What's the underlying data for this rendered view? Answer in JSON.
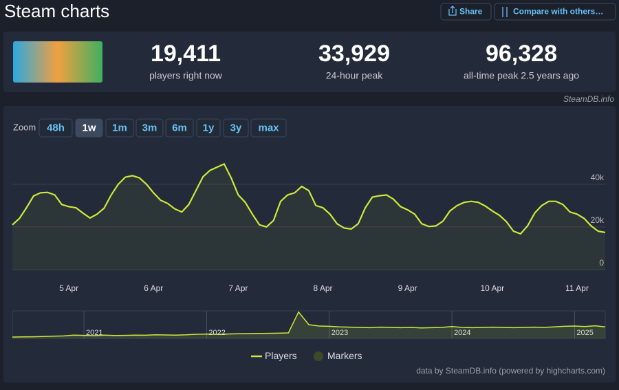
{
  "header": {
    "title": "Steam charts",
    "buttons": [
      "Share",
      "Compare with others…"
    ]
  },
  "stats": [
    {
      "value": "19,411",
      "label": "players right now"
    },
    {
      "value": "33,929",
      "label": "24-hour peak"
    },
    {
      "value": "96,328",
      "label": "all-time peak 2.5 years ago"
    }
  ],
  "source_note": "SteamDB.info",
  "zoom": {
    "label": "Zoom",
    "buttons": [
      "48h",
      "1w",
      "1m",
      "3m",
      "6m",
      "1y",
      "3y",
      "max"
    ],
    "active": "1w"
  },
  "credit": "data by SteamDB.info (powered by highcharts.com)",
  "chart_data": [
    {
      "type": "line",
      "categories": [
        null,
        null,
        null,
        null,
        null,
        null,
        null,
        null,
        "5 Apr",
        null,
        null,
        null,
        null,
        null,
        null,
        null,
        null,
        null,
        null,
        null,
        "6 Apr",
        null,
        null,
        null,
        null,
        null,
        null,
        null,
        null,
        null,
        null,
        null,
        "7 Apr",
        null,
        null,
        null,
        null,
        null,
        null,
        null,
        null,
        null,
        null,
        null,
        "8 Apr",
        null,
        null,
        null,
        null,
        null,
        null,
        null,
        null,
        null,
        null,
        null,
        "9 Apr",
        null,
        null,
        null,
        null,
        null,
        null,
        null,
        null,
        null,
        null,
        null,
        "10 Apr",
        null,
        null,
        null,
        null,
        null,
        null,
        null,
        null,
        null,
        null,
        null,
        "11 Apr",
        null,
        null,
        null,
        null
      ],
      "series": [
        {
          "name": "Players",
          "color": "#c8ec3a",
          "values": [
            21000,
            24000,
            29000,
            34500,
            36000,
            36200,
            35000,
            30500,
            29500,
            29000,
            26500,
            24200,
            26000,
            28800,
            35000,
            40000,
            43300,
            44000,
            43000,
            40000,
            36000,
            32500,
            31000,
            28500,
            27000,
            30500,
            37000,
            43500,
            46500,
            48000,
            49500,
            43000,
            35000,
            31500,
            26000,
            21000,
            20000,
            23000,
            32000,
            35000,
            36000,
            39000,
            37000,
            30000,
            29000,
            26000,
            21500,
            19500,
            19000,
            21500,
            29000,
            34000,
            34600,
            35000,
            33000,
            29500,
            28000,
            26000,
            21500,
            20200,
            20500,
            22700,
            27500,
            30000,
            31500,
            32000,
            31500,
            29800,
            27500,
            25500,
            22500,
            18000,
            16800,
            20500,
            26500,
            30000,
            32000,
            32000,
            30500,
            27000,
            26000,
            24000,
            20500,
            18000,
            17400
          ]
        }
      ],
      "ylim": [
        0,
        58000
      ],
      "yticks": [
        0,
        {
          "value": 20000,
          "label": "20k"
        },
        {
          "value": 40000,
          "label": "40k"
        }
      ],
      "grid": true,
      "legend": [
        {
          "name": "Players",
          "color": "#c8ec3a"
        },
        {
          "name": "Markers",
          "color": "#3d4a26"
        }
      ]
    },
    {
      "type": "line",
      "categories": [
        null,
        null,
        null,
        null,
        null,
        null,
        null,
        "2021",
        null,
        null,
        null,
        null,
        null,
        null,
        null,
        null,
        null,
        null,
        null,
        "2022",
        null,
        null,
        null,
        null,
        null,
        null,
        null,
        null,
        null,
        null,
        null,
        "2023",
        null,
        null,
        null,
        null,
        null,
        null,
        null,
        null,
        null,
        null,
        null,
        "2024",
        null,
        null,
        null,
        null,
        null,
        null,
        null,
        null,
        null,
        null,
        null,
        "2025",
        null,
        null,
        null
      ],
      "series": [
        {
          "name": "Players",
          "color": "#c8ec3a",
          "values": [
            5000,
            5500,
            6000,
            7000,
            8000,
            9000,
            12000,
            11000,
            10000,
            12000,
            10500,
            11000,
            12000,
            11500,
            13000,
            12500,
            12000,
            13000,
            15000,
            16000,
            15000,
            16000,
            17000,
            17500,
            18000,
            18500,
            19000,
            20000,
            96000,
            50000,
            45000,
            44000,
            42000,
            41000,
            40000,
            39000,
            41000,
            40000,
            39000,
            40000,
            38000,
            39000,
            40000,
            43000,
            40000,
            39000,
            40000,
            41000,
            40000,
            39000,
            40000,
            41000,
            40000,
            42000,
            44000,
            45000,
            43000,
            46000,
            42000
          ]
        }
      ],
      "ylim": [
        0,
        100000
      ],
      "xgrid": true
    }
  ]
}
